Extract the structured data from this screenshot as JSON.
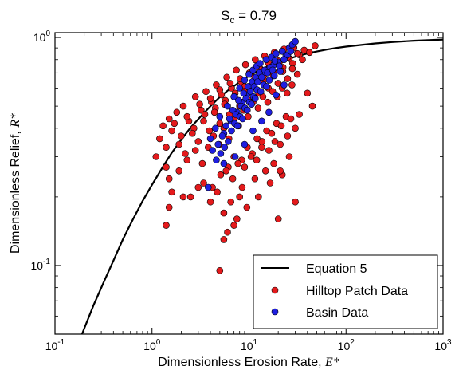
{
  "chart_data": {
    "type": "scatter",
    "title": "S_c = 0.79",
    "title_main": "S",
    "title_sub": "c",
    "title_rest": " = 0.79",
    "xlabel": "Dimensionless Erosion Rate, ",
    "xlabel_symbol": "E*",
    "ylabel": "Dimensionless Relief, ",
    "ylabel_symbol": "R*",
    "x_scale": "log",
    "y_scale": "log",
    "xlim": [
      0.1,
      1000
    ],
    "ylim": [
      0.05,
      1.05
    ],
    "x_ticks": [
      {
        "value": 0.1,
        "label": "10",
        "exp": "-1"
      },
      {
        "value": 1,
        "label": "10",
        "exp": "0"
      },
      {
        "value": 10,
        "label": "10",
        "exp": "1"
      },
      {
        "value": 100,
        "label": "10",
        "exp": "2"
      },
      {
        "value": 1000,
        "label": "10",
        "exp": "3"
      }
    ],
    "y_ticks": [
      {
        "value": 0.1,
        "label": "10",
        "exp": "-1"
      },
      {
        "value": 1,
        "label": "10",
        "exp": "0"
      }
    ],
    "grid": false,
    "legend_position": "bottom-right",
    "colors": {
      "curve": "#000000",
      "hilltop": "#e41a1c",
      "basin": "#1f1fe0",
      "edge": "#000000"
    },
    "series": [
      {
        "name": "Equation 5",
        "kind": "line",
        "x": [
          0.19,
          0.25,
          0.32,
          0.4,
          0.5,
          0.63,
          0.79,
          1.0,
          1.26,
          1.58,
          2.0,
          2.5,
          3.2,
          4.0,
          5.0,
          6.3,
          8.0,
          10,
          12.6,
          15.8,
          20,
          25,
          32,
          40,
          50,
          63,
          80,
          100,
          150,
          200,
          300,
          500,
          1000
        ],
        "y": [
          0.05,
          0.067,
          0.085,
          0.105,
          0.13,
          0.158,
          0.19,
          0.226,
          0.266,
          0.31,
          0.356,
          0.403,
          0.452,
          0.5,
          0.548,
          0.594,
          0.638,
          0.679,
          0.716,
          0.749,
          0.779,
          0.805,
          0.83,
          0.851,
          0.868,
          0.885,
          0.9,
          0.912,
          0.93,
          0.942,
          0.955,
          0.968,
          0.98
        ]
      },
      {
        "name": "Hilltop Patch Data",
        "kind": "points",
        "x": [
          1.3,
          1.5,
          1.6,
          1.8,
          2.1,
          2.4,
          2.8,
          3.2,
          3.6,
          4.1,
          4.6,
          5.2,
          5.9,
          6.6,
          7.4,
          8.3,
          9.2,
          10.4,
          11.6,
          13.0,
          14.5,
          16.3,
          18.2,
          20.5,
          23.0,
          26.0,
          29.0,
          33.0,
          37.0,
          42.0,
          48.0,
          1.2,
          1.4,
          1.7,
          2.0,
          2.3,
          2.7,
          3.1,
          3.5,
          4.0,
          4.5,
          5.0,
          5.7,
          6.4,
          7.2,
          8.1,
          9.0,
          10.1,
          11.3,
          12.7,
          14.2,
          15.9,
          17.8,
          20.0,
          22.4,
          25.1,
          28.2,
          31.6,
          35.5,
          1.1,
          1.4,
          1.9,
          2.2,
          2.6,
          3.0,
          3.4,
          3.9,
          4.4,
          5.0,
          5.6,
          6.3,
          7.1,
          8.0,
          8.9,
          10.0,
          11.2,
          12.6,
          14.1,
          15.8,
          17.8,
          19.9,
          22.3,
          25.0,
          28.0,
          31.5,
          1.5,
          1.9,
          2.3,
          2.8,
          3.3,
          3.8,
          4.3,
          4.9,
          5.5,
          6.2,
          7.0,
          7.8,
          8.8,
          9.8,
          11.0,
          12.4,
          13.9,
          15.6,
          17.5,
          19.6,
          22.0,
          24.7,
          27.7,
          4.2,
          5.1,
          6.1,
          7.0,
          8.4,
          9.6,
          10.8,
          12.1,
          13.6,
          15.2,
          17.1,
          19.2,
          21.5,
          24.1,
          27.0,
          2.5,
          3.4,
          4.7,
          5.8,
          6.8,
          7.7,
          9.0,
          10.5,
          12.0,
          13.5,
          16.0,
          18.5,
          21.0,
          25.0,
          30.0,
          6.5,
          8.5,
          11.5,
          14.8,
          18.0,
          22.0,
          1.4,
          1.5,
          1.6,
          2.1,
          3.0,
          4.0,
          5.5,
          7.5,
          9.5,
          12.5,
          16.5,
          21.0,
          26.0,
          33.0,
          40.0,
          5.0,
          5.5,
          6.0,
          7.0,
          8.0,
          20.0,
          30.0,
          45.0
        ],
        "y": [
          0.41,
          0.44,
          0.39,
          0.47,
          0.5,
          0.43,
          0.55,
          0.48,
          0.58,
          0.52,
          0.62,
          0.56,
          0.67,
          0.6,
          0.72,
          0.64,
          0.76,
          0.69,
          0.8,
          0.73,
          0.83,
          0.75,
          0.86,
          0.78,
          0.89,
          0.81,
          0.9,
          0.84,
          0.88,
          0.86,
          0.92,
          0.36,
          0.33,
          0.42,
          0.37,
          0.45,
          0.4,
          0.51,
          0.46,
          0.54,
          0.49,
          0.59,
          0.53,
          0.63,
          0.57,
          0.66,
          0.61,
          0.7,
          0.65,
          0.74,
          0.68,
          0.77,
          0.71,
          0.79,
          0.74,
          0.82,
          0.77,
          0.85,
          0.8,
          0.3,
          0.27,
          0.34,
          0.31,
          0.38,
          0.35,
          0.43,
          0.39,
          0.47,
          0.42,
          0.51,
          0.46,
          0.55,
          0.5,
          0.58,
          0.53,
          0.62,
          0.57,
          0.65,
          0.6,
          0.68,
          0.63,
          0.71,
          0.66,
          0.73,
          0.69,
          0.24,
          0.26,
          0.29,
          0.32,
          0.28,
          0.33,
          0.37,
          0.34,
          0.4,
          0.36,
          0.44,
          0.41,
          0.48,
          0.45,
          0.52,
          0.49,
          0.55,
          0.52,
          0.58,
          0.55,
          0.6,
          0.57,
          0.62,
          0.22,
          0.25,
          0.27,
          0.3,
          0.29,
          0.33,
          0.31,
          0.36,
          0.35,
          0.39,
          0.38,
          0.42,
          0.41,
          0.45,
          0.44,
          0.2,
          0.23,
          0.21,
          0.26,
          0.24,
          0.28,
          0.27,
          0.3,
          0.29,
          0.33,
          0.32,
          0.35,
          0.34,
          0.37,
          0.4,
          0.19,
          0.22,
          0.24,
          0.26,
          0.28,
          0.25,
          0.15,
          0.18,
          0.21,
          0.2,
          0.22,
          0.19,
          0.17,
          0.16,
          0.18,
          0.2,
          0.23,
          0.26,
          0.3,
          0.46,
          0.57,
          0.095,
          0.13,
          0.14,
          0.15,
          0.2,
          0.16,
          0.19,
          0.5
        ]
      },
      {
        "name": "Basin Data",
        "kind": "points",
        "x": [
          4.0,
          4.5,
          5.0,
          5.5,
          6.0,
          6.5,
          7.0,
          7.5,
          8.0,
          8.5,
          9.0,
          9.5,
          10.0,
          10.5,
          11.0,
          11.5,
          12.0,
          12.5,
          13.0,
          14.0,
          15.0,
          16.0,
          17.0,
          18.0,
          19.0,
          20.0,
          22.0,
          24.0,
          26.0,
          28.0,
          4.2,
          4.8,
          5.3,
          5.8,
          6.3,
          6.8,
          7.3,
          7.8,
          8.3,
          8.8,
          9.3,
          9.8,
          10.3,
          10.8,
          11.3,
          11.8,
          12.3,
          12.8,
          13.5,
          14.5,
          15.5,
          16.5,
          17.5,
          18.5,
          20.5,
          23.0,
          25.0,
          27.0,
          4.6,
          5.1,
          5.6,
          6.1,
          6.6,
          7.1,
          7.6,
          8.1,
          8.6,
          9.1,
          9.6,
          10.1,
          10.6,
          11.1,
          11.6,
          12.1,
          13.2,
          14.2,
          15.2,
          16.2,
          18.2,
          21.0,
          3.8,
          5.5,
          7.2,
          9.0,
          11.0,
          13.5,
          16.0,
          19.0,
          23.0,
          30.0
        ],
        "y": [
          0.36,
          0.4,
          0.45,
          0.38,
          0.5,
          0.43,
          0.55,
          0.47,
          0.6,
          0.52,
          0.65,
          0.56,
          0.69,
          0.6,
          0.72,
          0.63,
          0.75,
          0.66,
          0.77,
          0.7,
          0.8,
          0.73,
          0.82,
          0.76,
          0.85,
          0.78,
          0.87,
          0.83,
          0.9,
          0.93,
          0.32,
          0.34,
          0.37,
          0.41,
          0.44,
          0.48,
          0.46,
          0.53,
          0.5,
          0.57,
          0.54,
          0.61,
          0.58,
          0.64,
          0.61,
          0.67,
          0.64,
          0.7,
          0.67,
          0.72,
          0.7,
          0.74,
          0.72,
          0.79,
          0.75,
          0.8,
          0.84,
          0.87,
          0.29,
          0.31,
          0.33,
          0.35,
          0.39,
          0.42,
          0.41,
          0.45,
          0.44,
          0.49,
          0.48,
          0.52,
          0.51,
          0.55,
          0.54,
          0.59,
          0.58,
          0.62,
          0.61,
          0.65,
          0.68,
          0.71,
          0.22,
          0.28,
          0.3,
          0.34,
          0.39,
          0.43,
          0.47,
          0.56,
          0.62,
          0.96
        ]
      }
    ]
  }
}
